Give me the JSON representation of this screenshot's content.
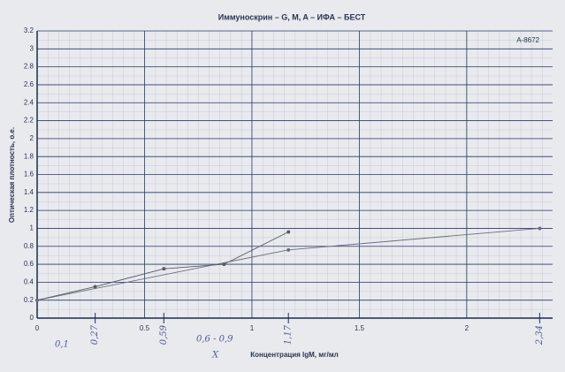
{
  "chart_data": {
    "type": "line",
    "title": "Иммуноскрин – G, M, A – ИФА – БЕСТ",
    "corner_note": "А-8672",
    "x_label": "Концентрация IgM, мг/мл",
    "y_label": "Оптическая плотность, о.е.",
    "xlim": [
      0,
      2.4
    ],
    "ylim": [
      0,
      3.2
    ],
    "xticks": [
      0,
      0.5,
      1,
      1.5,
      2
    ],
    "yticks": [
      0,
      0.2,
      0.4,
      0.6,
      0.8,
      1,
      1.2,
      1.4,
      1.6,
      1.8,
      2,
      2.2,
      2.4,
      2.6,
      2.8,
      3,
      3.2
    ],
    "handwritten_xticks": [
      {
        "value": 0.27,
        "label": "0,27"
      },
      {
        "value": 0.59,
        "label": "0,59"
      },
      {
        "value": 1.17,
        "label": "1,17"
      },
      {
        "value": 2.34,
        "label": "2,34"
      }
    ],
    "handwritten_notes": [
      "0,1",
      "0,6 - 0,9",
      "X"
    ],
    "grid": true,
    "series": [
      {
        "color": "#555a66",
        "x": [
          0,
          0.27,
          0.59,
          0.87,
          1.17
        ],
        "values": [
          0.2,
          0.35,
          0.55,
          0.6,
          0.96
        ]
      },
      {
        "color": "#6a6f7a",
        "x": [
          0,
          1.17,
          2.34
        ],
        "values": [
          0.2,
          0.76,
          1.0
        ]
      }
    ]
  }
}
